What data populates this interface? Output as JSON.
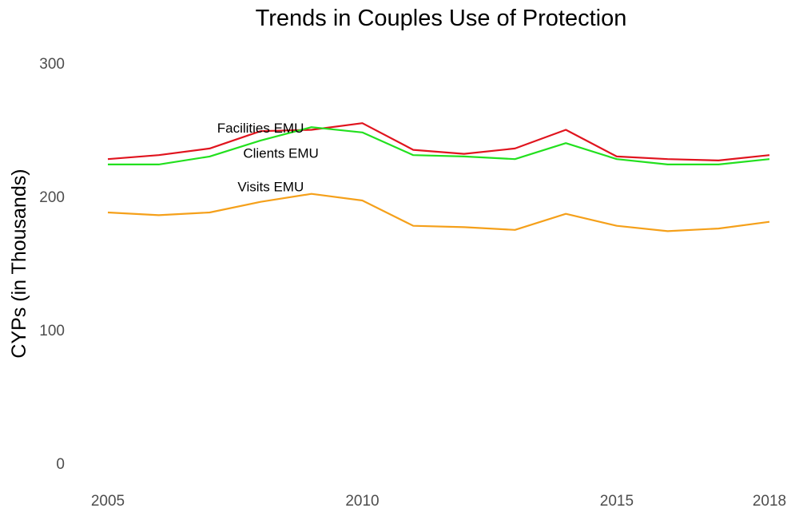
{
  "chart_data": {
    "type": "line",
    "title": "Trends in Couples Use of Protection",
    "xlabel": "",
    "ylabel": "CYPs (in Thousands)",
    "xlim": [
      2005,
      2018
    ],
    "ylim": [
      0,
      300
    ],
    "xticks": [
      2005,
      2010,
      2015,
      2018
    ],
    "yticks": [
      0,
      100,
      200,
      300
    ],
    "grid": false,
    "legend": "none",
    "x": [
      2005,
      2006,
      2007,
      2008,
      2009,
      2010,
      2011,
      2012,
      2013,
      2014,
      2015,
      2016,
      2017,
      2018
    ],
    "series": [
      {
        "name": "Facilities EMU",
        "color": "#e0141e",
        "label_at": [
          2008,
          248
        ],
        "values": [
          228,
          231,
          236,
          249,
          250,
          255,
          235,
          232,
          236,
          250,
          230,
          228,
          227,
          231
        ]
      },
      {
        "name": "Clients EMU",
        "color": "#22e01e",
        "label_at": [
          2008.4,
          229
        ],
        "values": [
          224,
          224,
          230,
          242,
          252,
          248,
          231,
          230,
          228,
          240,
          228,
          224,
          224,
          228
        ]
      },
      {
        "name": "Visits EMU",
        "color": "#f5a01a",
        "label_at": [
          2008.2,
          204
        ],
        "values": [
          188,
          186,
          188,
          196,
          202,
          197,
          178,
          177,
          175,
          187,
          178,
          174,
          176,
          181
        ]
      }
    ]
  }
}
